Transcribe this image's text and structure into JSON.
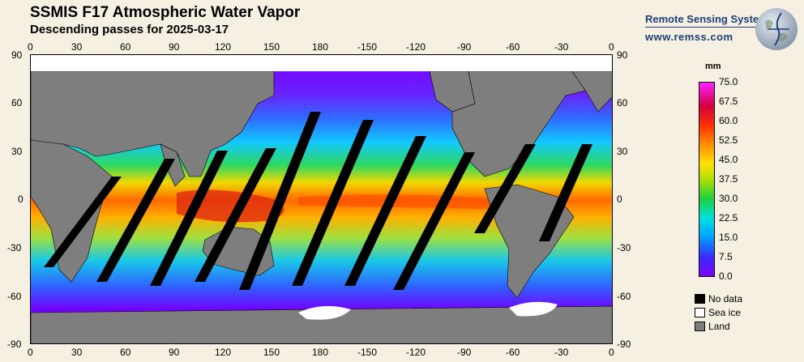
{
  "header": {
    "title": "SSMIS F17 Atmospheric Water Vapor",
    "subtitle": "Descending passes for 2025-03-17"
  },
  "brand": {
    "name": "Remote Sensing Systems",
    "url": "www.remss.com",
    "logo_icon": "globe-icon"
  },
  "map": {
    "lon_ticks": [
      "0",
      "30",
      "60",
      "90",
      "120",
      "150",
      "180",
      "-150",
      "-120",
      "-90",
      "-60",
      "-30",
      "0"
    ],
    "lat_ticks": [
      "90",
      "60",
      "30",
      "0",
      "-30",
      "-60",
      "-90"
    ]
  },
  "colorbar": {
    "unit": "mm",
    "labels": [
      "75.0",
      "67.5",
      "60.0",
      "52.5",
      "45.0",
      "37.5",
      "30.0",
      "22.5",
      "15.0",
      "7.5",
      "0.0"
    ],
    "colors": {
      "min": "#7a00ff",
      "low": "#00a0ff",
      "mid": "#20d040",
      "high": "#ff3000",
      "max": "#ff20ff"
    }
  },
  "legend": {
    "items": [
      {
        "label": "No data",
        "color": "#000000"
      },
      {
        "label": "Sea ice",
        "color": "#ffffff"
      },
      {
        "label": "Land",
        "color": "#7e7e7e"
      }
    ]
  }
}
